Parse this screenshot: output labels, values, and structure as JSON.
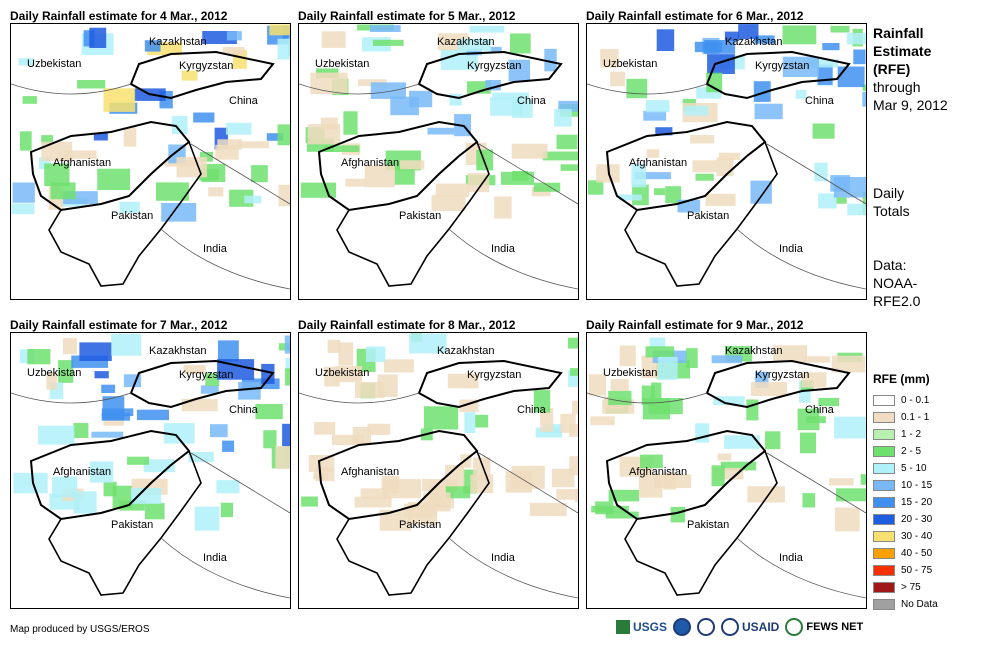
{
  "panels": [
    {
      "title": "Daily Rainfall estimate for 4 Mar., 2012",
      "level": 0.9
    },
    {
      "title": "Daily Rainfall estimate for 5 Mar., 2012",
      "level": 0.5
    },
    {
      "title": "Daily Rainfall estimate for 6 Mar., 2012",
      "level": 0.85
    },
    {
      "title": "Daily Rainfall estimate for 7 Mar., 2012",
      "level": 0.75
    },
    {
      "title": "Daily Rainfall estimate for 8 Mar., 2012",
      "level": 0.3
    },
    {
      "title": "Daily Rainfall estimate for 9 Mar., 2012",
      "level": 0.4
    }
  ],
  "map_labels": {
    "kazakhstan": "Kazakhstan",
    "uzbekistan": "Uzbekistan",
    "kyrgyzstan": "Kyrgyzstan",
    "china": "China",
    "afghanistan": "Afghanistan",
    "pakistan": "Pakistan",
    "india": "India"
  },
  "side": {
    "title_line1": "Rainfall",
    "title_line2": "Estimate",
    "title_line3": "(RFE)",
    "through": "through",
    "date": "Mar 9, 2012",
    "daily1": "Daily",
    "daily2": "Totals",
    "data1": "Data:",
    "data2": "NOAA-",
    "data3": "RFE2.0"
  },
  "legend": {
    "title": "RFE (mm)",
    "items": [
      {
        "label": "0 - 0.1",
        "color": "#ffffff"
      },
      {
        "label": "0.1 - 1",
        "color": "#f0dcc0"
      },
      {
        "label": "1 - 2",
        "color": "#b8f0b0"
      },
      {
        "label": "2 - 5",
        "color": "#6ee06e"
      },
      {
        "label": "5 - 10",
        "color": "#b0f0f8"
      },
      {
        "label": "10 - 15",
        "color": "#78b8f8"
      },
      {
        "label": "15 - 20",
        "color": "#4090f0"
      },
      {
        "label": "20 - 30",
        "color": "#1e5ce0"
      },
      {
        "label": "30 - 40",
        "color": "#f8e070"
      },
      {
        "label": "40 - 50",
        "color": "#f8a000"
      },
      {
        "label": "50 - 75",
        "color": "#f83000"
      },
      {
        "label": "> 75",
        "color": "#a01818"
      },
      {
        "label": "No Data",
        "color": "#a0a0a0"
      }
    ]
  },
  "credit": "Map produced by USGS/EROS",
  "logos": {
    "usgs": "USGS",
    "usaid": "USAID",
    "fews": "FEWS NET"
  }
}
